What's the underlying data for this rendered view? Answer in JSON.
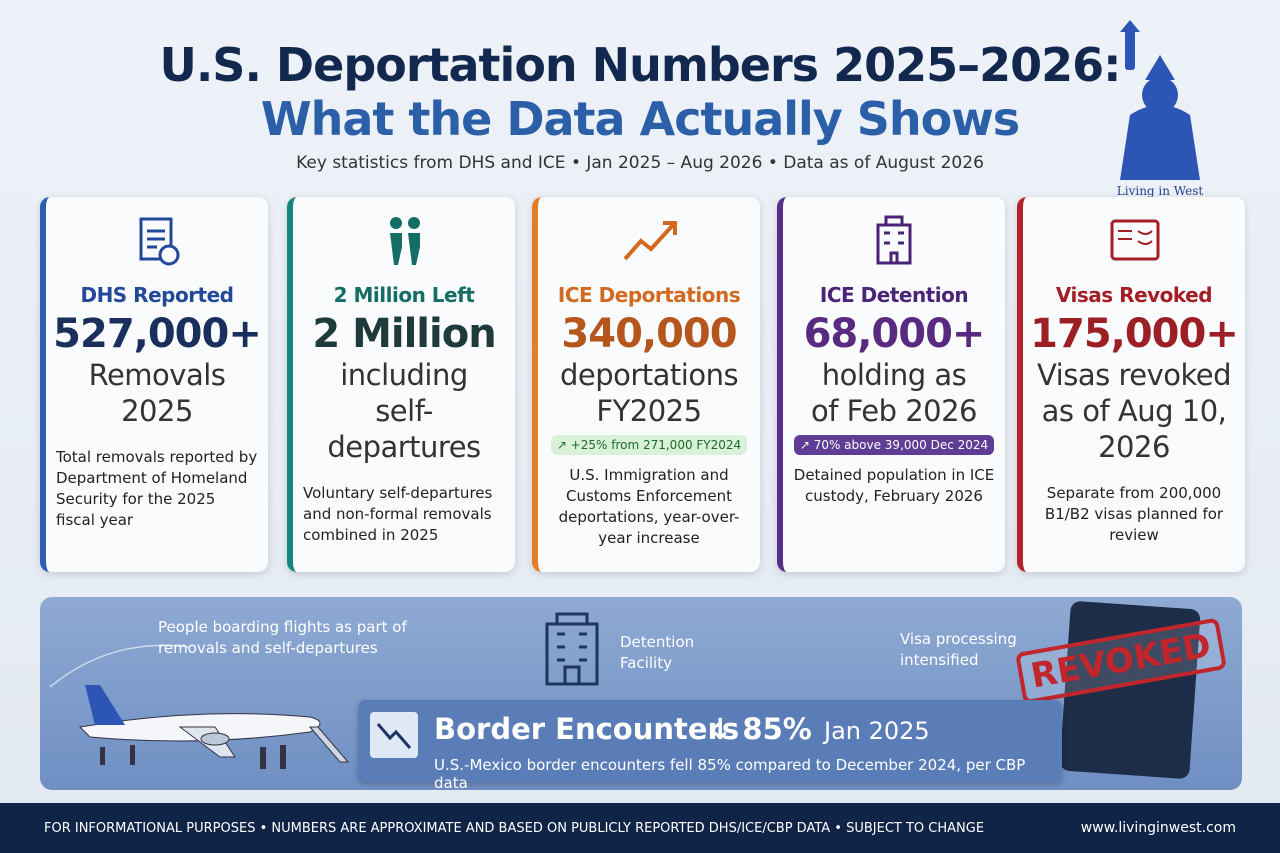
{
  "header": {
    "title_line1": "U.S. Deportation Numbers 2025–2026:",
    "title_line2": "What the Data Actually Shows",
    "subtitle": "Key statistics from DHS and ICE • Jan 2025 – Aug 2026 • Data as of August 2026",
    "logo": "Living in West"
  },
  "cards": [
    {
      "heading": "DHS Reported",
      "figure": "527,000+",
      "label_lines": [
        "Removals",
        "2025"
      ],
      "description": "Total removals reported by Department of Homeland Security for the 2025 fiscal year"
    },
    {
      "heading": "2 Million Left",
      "figure": "2 Million",
      "label_lines": [
        "including",
        "self-departures"
      ],
      "description": "Voluntary self-departures and non-formal removals combined in 2025"
    },
    {
      "heading": "ICE Deportations",
      "figure": "340,000",
      "label_lines": [
        "deportations",
        "FY2025"
      ],
      "badge": "↗ +25% from 271,000 FY2024",
      "description": "U.S. Immigration and Customs Enforcement deportations, year-over-year increase"
    },
    {
      "heading": "ICE Detention",
      "figure": "68,000+",
      "label_lines": [
        "holding as",
        "of Feb 2026"
      ],
      "badge": "↗ 70% above 39,000 Dec 2024",
      "description": "Detained population in ICE custody, February 2026"
    },
    {
      "heading": "Visas Revoked",
      "figure": "175,000+",
      "label_lines": [
        "Visas revoked",
        "as of Aug 10,",
        "2026"
      ],
      "description": "Separate from 200,000 B1/B2 visas planned for review"
    }
  ],
  "panel": {
    "flights_caption": "People boarding flights as part of removals and self-departures",
    "detention_caption": "Detention Facility",
    "visa_caption": "Visa processing intensified",
    "stamp": "REVOKED",
    "border": {
      "title": "Border Encounters",
      "change": "↓ 85%",
      "date": "Jan 2025",
      "note": "U.S.-Mexico border encounters fell 85% compared to December 2024, per CBP data"
    }
  },
  "footer": {
    "disclaimer": "FOR INFORMATIONAL PURPOSES • NUMBERS ARE APPROXIMATE AND BASED ON PUBLICLY REPORTED DHS/ICE/CBP DATA • SUBJECT TO CHANGE",
    "url": "www.livinginwest.com"
  }
}
